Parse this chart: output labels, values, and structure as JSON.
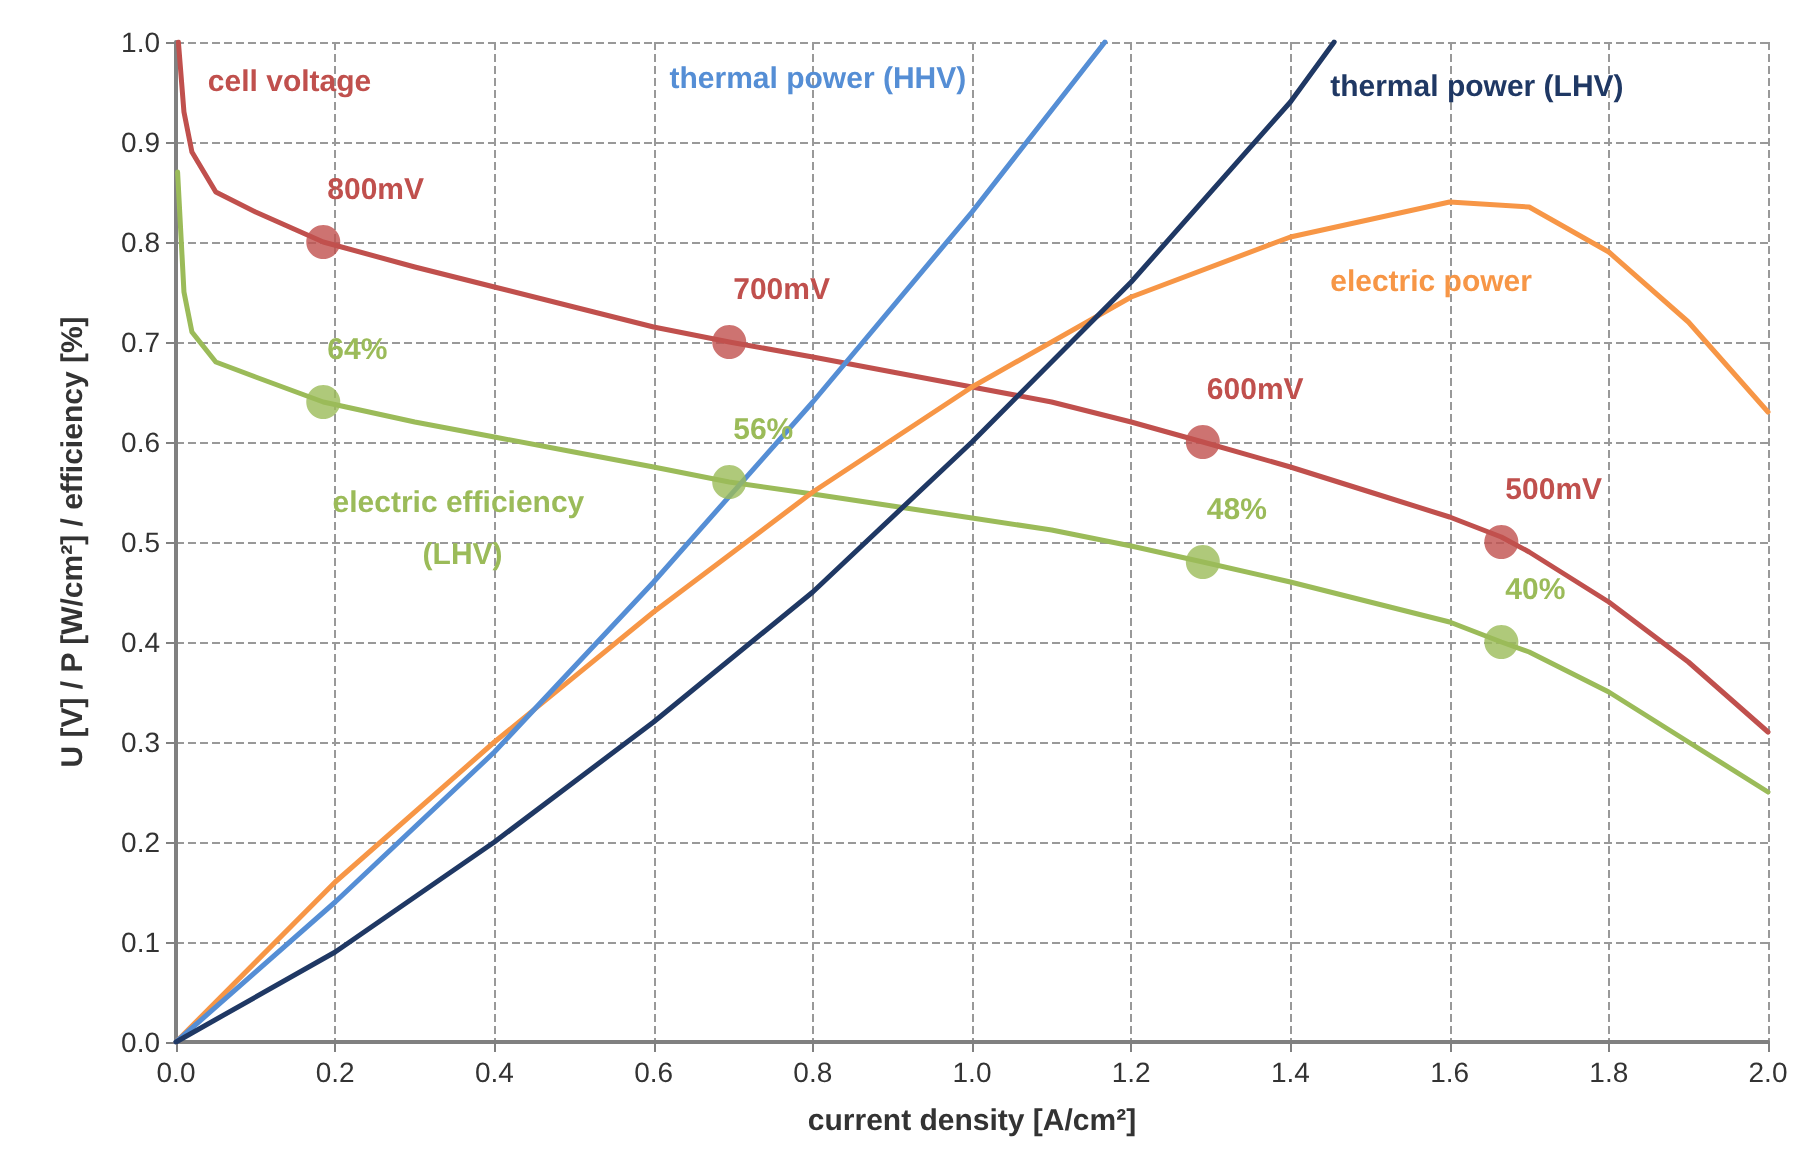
{
  "chart_data": {
    "type": "line",
    "xlabel": "current density [A/cm²]",
    "ylabel": "U [V] / P [W/cm²] / efficiency [%]",
    "xlim": [
      0,
      2
    ],
    "ylim": [
      0,
      1
    ],
    "xticks": [
      {
        "value": 0,
        "label": "0.0"
      },
      {
        "value": 0.2,
        "label": "0.2"
      },
      {
        "value": 0.4,
        "label": "0.4"
      },
      {
        "value": 0.6,
        "label": "0.6"
      },
      {
        "value": 0.8,
        "label": "0.8"
      },
      {
        "value": 1,
        "label": "1.0"
      },
      {
        "value": 1.2,
        "label": "1.2"
      },
      {
        "value": 1.4,
        "label": "1.4"
      },
      {
        "value": 1.6,
        "label": "1.6"
      },
      {
        "value": 1.8,
        "label": "1.8"
      },
      {
        "value": 2,
        "label": "2.0"
      }
    ],
    "yticks": [
      {
        "value": 0,
        "label": "0.0"
      },
      {
        "value": 0.1,
        "label": "0.1"
      },
      {
        "value": 0.2,
        "label": "0.2"
      },
      {
        "value": 0.3,
        "label": "0.3"
      },
      {
        "value": 0.4,
        "label": "0.4"
      },
      {
        "value": 0.5,
        "label": "0.5"
      },
      {
        "value": 0.6,
        "label": "0.6"
      },
      {
        "value": 0.7,
        "label": "0.7"
      },
      {
        "value": 0.8,
        "label": "0.8"
      },
      {
        "value": 0.9,
        "label": "0.9"
      },
      {
        "value": 1,
        "label": "1.0"
      }
    ],
    "grid": true,
    "marker": "none",
    "line_style": "solid",
    "legend": false,
    "series": [
      {
        "name": "cell voltage",
        "color": "#c0504d",
        "x": [
          0.003,
          0.01,
          0.02,
          0.05,
          0.1,
          0.185,
          0.3,
          0.4,
          0.5,
          0.6,
          0.695,
          0.8,
          0.9,
          1.0,
          1.1,
          1.2,
          1.29,
          1.4,
          1.5,
          1.6,
          1.665,
          1.7,
          1.8,
          1.9,
          2.0
        ],
        "values": [
          1.0,
          0.93,
          0.89,
          0.85,
          0.83,
          0.8,
          0.775,
          0.755,
          0.735,
          0.715,
          0.7,
          0.685,
          0.67,
          0.655,
          0.64,
          0.62,
          0.6,
          0.575,
          0.55,
          0.525,
          0.505,
          0.49,
          0.44,
          0.38,
          0.31
        ]
      },
      {
        "name": "electric efficiency (LHV)",
        "color": "#9bbb59",
        "x": [
          0.002,
          0.01,
          0.02,
          0.05,
          0.1,
          0.185,
          0.3,
          0.4,
          0.5,
          0.6,
          0.695,
          0.8,
          0.9,
          1.0,
          1.1,
          1.2,
          1.29,
          1.4,
          1.5,
          1.6,
          1.665,
          1.7,
          1.8,
          1.9,
          2.0
        ],
        "values": [
          0.87,
          0.75,
          0.71,
          0.68,
          0.665,
          0.64,
          0.62,
          0.605,
          0.59,
          0.575,
          0.56,
          0.548,
          0.536,
          0.524,
          0.512,
          0.496,
          0.48,
          0.46,
          0.44,
          0.42,
          0.4,
          0.39,
          0.35,
          0.3,
          0.25
        ]
      },
      {
        "name": "electric power",
        "color": "#f79646",
        "x": [
          0,
          0.2,
          0.4,
          0.6,
          0.8,
          1.0,
          1.2,
          1.4,
          1.6,
          1.7,
          1.8,
          1.9,
          2.0
        ],
        "values": [
          0,
          0.16,
          0.3,
          0.43,
          0.55,
          0.655,
          0.745,
          0.805,
          0.84,
          0.835,
          0.79,
          0.72,
          0.63
        ]
      },
      {
        "name": "thermal power (HHV)",
        "color": "#558ed5",
        "x": [
          0,
          0.2,
          0.4,
          0.6,
          0.8,
          1.0,
          1.167
        ],
        "values": [
          0,
          0.14,
          0.29,
          0.46,
          0.64,
          0.83,
          1.0
        ]
      },
      {
        "name": "thermal power (LHV)",
        "color": "#1f3864",
        "x": [
          0,
          0.2,
          0.4,
          0.6,
          0.8,
          1.0,
          1.2,
          1.4,
          1.455
        ],
        "values": [
          0,
          0.09,
          0.2,
          0.32,
          0.45,
          0.6,
          0.76,
          0.94,
          1.0
        ]
      },
      {
        "type": "scatter",
        "marker": "circle",
        "color": "#c0504d",
        "x": [
          0.185,
          0.695,
          1.29,
          1.665
        ],
        "values": [
          0.8,
          0.7,
          0.6,
          0.5
        ]
      },
      {
        "type": "scatter",
        "marker": "circle",
        "color": "#9bbb59",
        "x": [
          0.185,
          0.695,
          1.29,
          1.665
        ],
        "values": [
          0.64,
          0.56,
          0.48,
          0.4
        ]
      }
    ],
    "annotations": [
      {
        "text": "800mV",
        "x": 0.185,
        "y": 0.8
      },
      {
        "text": "700mV",
        "x": 0.695,
        "y": 0.7
      },
      {
        "text": "600mV",
        "x": 1.29,
        "y": 0.6
      },
      {
        "text": "500mV",
        "x": 1.665,
        "y": 0.5
      },
      {
        "text": "64%",
        "x": 0.185,
        "y": 0.64
      },
      {
        "text": "56%",
        "x": 0.695,
        "y": 0.56
      },
      {
        "text": "48%",
        "x": 1.29,
        "y": 0.48
      },
      {
        "text": "40%",
        "x": 1.665,
        "y": 0.4
      }
    ]
  }
}
